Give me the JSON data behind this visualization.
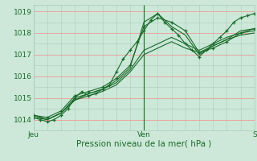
{
  "xlabel": "Pression niveau de la mer( hPa )",
  "bg_color": "#cde8d8",
  "plot_bg_color": "#cce8d8",
  "grid_color_major_y": "#ee9999",
  "grid_color_minor": "#aaccbb",
  "line_color": "#1a6b2a",
  "marker_color": "#1a6b2a",
  "ylim": [
    1013.5,
    1019.3
  ],
  "xlim": [
    0,
    96
  ],
  "yticks": [
    1014,
    1015,
    1016,
    1017,
    1018,
    1019
  ],
  "xtick_positions": [
    0,
    48,
    96
  ],
  "xtick_labels": [
    "Jeu",
    "Ven",
    "S"
  ],
  "vline_x": 48,
  "series": [
    {
      "x": [
        0,
        3,
        6,
        9,
        12,
        15,
        18,
        21,
        24,
        27,
        30,
        33,
        36,
        39,
        42,
        45,
        48,
        51,
        54,
        57,
        60,
        63,
        66,
        69,
        72,
        75,
        78,
        81,
        84,
        87,
        90,
        93,
        96
      ],
      "y": [
        1014.1,
        1014.0,
        1013.9,
        1014.0,
        1014.2,
        1014.5,
        1015.0,
        1015.3,
        1015.1,
        1015.2,
        1015.4,
        1015.6,
        1016.2,
        1016.8,
        1017.2,
        1017.6,
        1018.1,
        1018.6,
        1018.9,
        1018.5,
        1018.2,
        1017.9,
        1017.5,
        1017.2,
        1016.9,
        1017.2,
        1017.5,
        1017.8,
        1018.1,
        1018.5,
        1018.7,
        1018.8,
        1018.9
      ],
      "with_markers": true
    },
    {
      "x": [
        0,
        6,
        12,
        18,
        24,
        30,
        36,
        42,
        48,
        54,
        60,
        66,
        72,
        78,
        84,
        90,
        96
      ],
      "y": [
        1014.2,
        1014.1,
        1014.4,
        1015.1,
        1015.3,
        1015.5,
        1015.9,
        1016.5,
        1018.3,
        1018.7,
        1018.5,
        1018.1,
        1017.1,
        1017.3,
        1017.6,
        1018.0,
        1018.2
      ],
      "with_markers": true
    },
    {
      "x": [
        0,
        6,
        12,
        18,
        24,
        30,
        36,
        42,
        48,
        54,
        60,
        66,
        72,
        78,
        84,
        90,
        96
      ],
      "y": [
        1014.2,
        1014.0,
        1014.3,
        1014.9,
        1015.2,
        1015.4,
        1015.8,
        1016.4,
        1018.5,
        1018.9,
        1018.3,
        1017.9,
        1017.0,
        1017.4,
        1017.7,
        1018.1,
        1018.2
      ],
      "with_markers": false
    },
    {
      "x": [
        0,
        6,
        12,
        18,
        24,
        30,
        36,
        42,
        48,
        54,
        60,
        66,
        72,
        78,
        84,
        90,
        96
      ],
      "y": [
        1014.1,
        1014.0,
        1014.3,
        1015.0,
        1015.2,
        1015.4,
        1015.7,
        1016.3,
        1017.2,
        1017.5,
        1017.8,
        1017.5,
        1017.2,
        1017.5,
        1017.8,
        1018.0,
        1018.1
      ],
      "with_markers": false
    },
    {
      "x": [
        0,
        6,
        12,
        18,
        24,
        30,
        36,
        42,
        48,
        54,
        60,
        66,
        72,
        78,
        84,
        90,
        96
      ],
      "y": [
        1014.2,
        1014.0,
        1014.3,
        1014.9,
        1015.1,
        1015.3,
        1015.6,
        1016.2,
        1017.0,
        1017.3,
        1017.6,
        1017.3,
        1017.1,
        1017.4,
        1017.7,
        1017.9,
        1018.0
      ],
      "with_markers": false
    }
  ]
}
